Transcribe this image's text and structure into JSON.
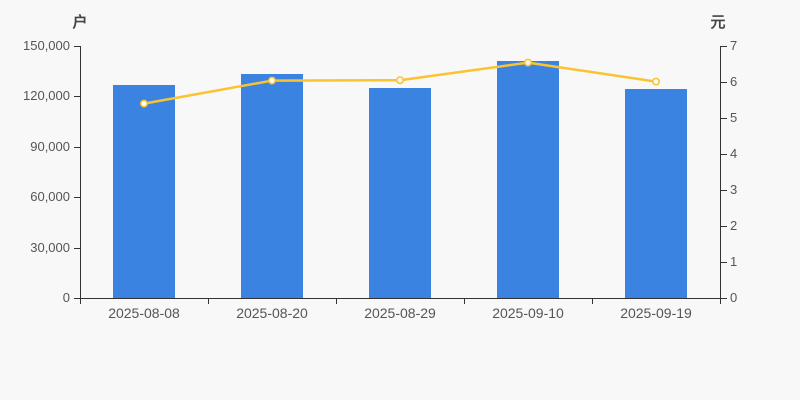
{
  "chart_data": {
    "type": "bar",
    "title": "",
    "categories": [
      "2025-08-08",
      "2025-08-20",
      "2025-08-29",
      "2025-09-10",
      "2025-09-19"
    ],
    "series": [
      {
        "name": "bar-series",
        "type": "bar",
        "axis": "left",
        "unit": "户",
        "color": "#3A83E0",
        "values": [
          126800,
          133200,
          125200,
          140900,
          124600
        ]
      },
      {
        "name": "line-series",
        "type": "line",
        "axis": "right",
        "unit": "元",
        "color": "#FCC330",
        "marker": "empty-circle",
        "marker_fill": "#FFFFFF",
        "values": [
          5.4,
          6.04,
          6.05,
          6.54,
          6.01
        ]
      }
    ],
    "left_axis": {
      "name": "户",
      "min": 0,
      "max": 150000,
      "interval": 30000,
      "ticks": [
        "150,000",
        "120,000",
        "90,000",
        "60,000",
        "30,000",
        "0"
      ]
    },
    "right_axis": {
      "name": "元",
      "min": 0,
      "max": 7,
      "interval": 1,
      "ticks": [
        "7",
        "6",
        "5",
        "4",
        "3",
        "2",
        "1",
        "0"
      ]
    },
    "grid": false,
    "legend": false
  },
  "colors": {
    "background": "#F8F8F8",
    "bar": "#3A83E0",
    "line": "#FCC330",
    "marker_fill": "#FFFFFF",
    "axis_line": "#333333",
    "tick_text": "#555555"
  }
}
